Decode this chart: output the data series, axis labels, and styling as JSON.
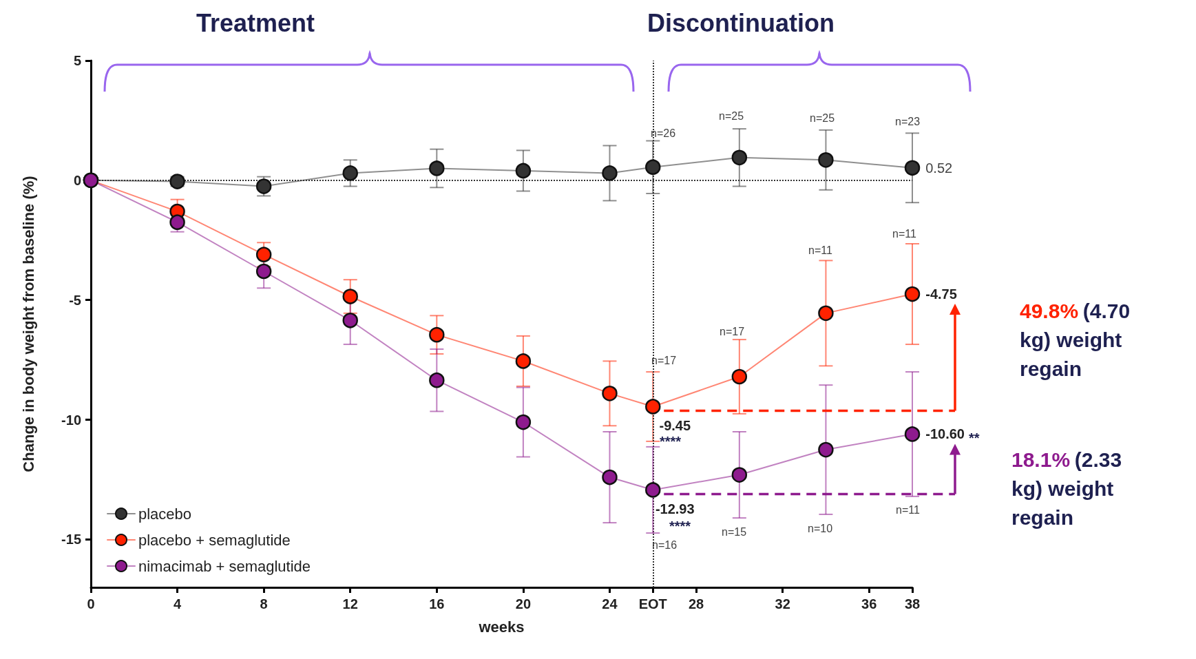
{
  "chart_data": {
    "type": "line",
    "xlabel": "weeks",
    "ylabel": "Change in body weight from baseline (%)",
    "x": [
      0,
      4,
      8,
      12,
      16,
      20,
      24,
      26,
      30,
      34,
      38
    ],
    "xlim": [
      0,
      38
    ],
    "xticks": [
      0,
      4,
      8,
      12,
      16,
      20,
      24,
      {
        "value": 26,
        "label": "EOT"
      },
      28,
      32,
      36,
      38
    ],
    "ylim": [
      -17,
      5
    ],
    "yticks": [
      5,
      0,
      -5,
      -10,
      -15
    ],
    "series": [
      {
        "name": "placebo",
        "color": "#333333",
        "values": [
          0,
          -0.05,
          -0.25,
          0.3,
          0.5,
          0.4,
          0.3,
          0.55,
          0.95,
          0.85,
          0.52
        ],
        "errors": [
          null,
          0.2,
          0.4,
          0.55,
          0.8,
          0.85,
          1.15,
          1.1,
          1.2,
          1.25,
          1.45
        ],
        "value_labels": [
          null,
          null,
          null,
          null,
          null,
          null,
          null,
          null,
          null,
          null,
          "0.52"
        ]
      },
      {
        "name": "placebo + semaglutide",
        "color": "#ff2200",
        "values": [
          0,
          -1.3,
          -3.1,
          -4.85,
          -6.45,
          -7.55,
          -8.9,
          -9.45,
          -8.2,
          -5.55,
          -4.75
        ],
        "errors": [
          null,
          0.5,
          0.5,
          0.7,
          0.8,
          1.05,
          1.35,
          1.45,
          1.55,
          2.2,
          2.1
        ],
        "value_labels": [
          null,
          null,
          null,
          null,
          null,
          null,
          null,
          "-9.45",
          null,
          null,
          "-4.75"
        ]
      },
      {
        "name": "nimacimab + semaglutide",
        "color": "#8e1b8e",
        "values": [
          0,
          -1.75,
          -3.8,
          -5.85,
          -8.35,
          -10.1,
          -12.4,
          -12.93,
          -12.3,
          -11.25,
          -10.6
        ],
        "errors": [
          null,
          0.4,
          0.7,
          1.0,
          1.3,
          1.45,
          1.9,
          1.8,
          1.8,
          2.7,
          2.6
        ],
        "value_labels": [
          null,
          null,
          null,
          null,
          null,
          null,
          null,
          "-12.93",
          null,
          null,
          "-10.60"
        ]
      }
    ],
    "ref_lines": [
      {
        "axis": "y",
        "value": 0,
        "color": "#333333",
        "line_style": "dotted"
      },
      {
        "axis": "x",
        "value": 26,
        "color": "#333333",
        "line_style": "dotted"
      }
    ],
    "annotations": [
      "Treatment",
      "Discontinuation",
      "**",
      "49.8% (4.70 kg) weight regain",
      "18.1% (2.33 kg) weight regain",
      "n=26",
      "n=25",
      "n=25",
      "n=23",
      "n=17",
      "n=17",
      "n=11",
      "n=11",
      "n=16",
      "n=15",
      "n=10",
      "n=11",
      "****",
      "****"
    ],
    "marker": "circle",
    "line_style": "solid",
    "grid": false,
    "legend": "bottom left"
  }
}
